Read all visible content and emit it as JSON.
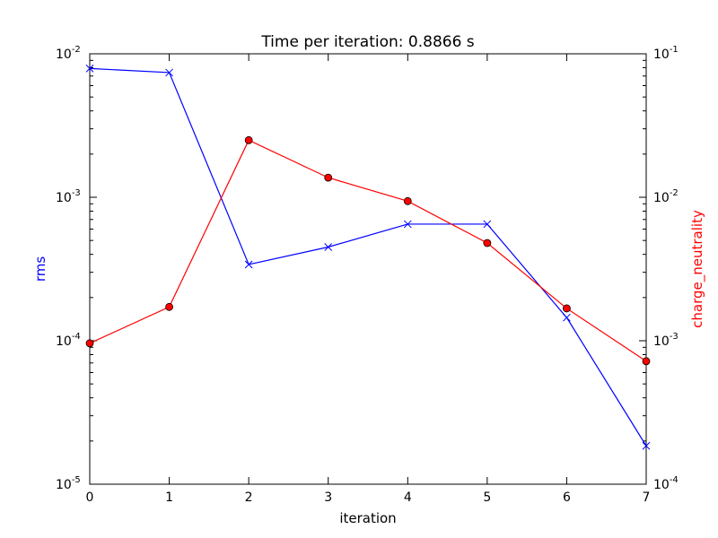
{
  "chart_data": {
    "type": "line",
    "title": "Time per iteration: 0.8866 s",
    "xlabel": "iteration",
    "x": [
      0,
      1,
      2,
      3,
      4,
      5,
      6,
      7
    ],
    "xlim": [
      0,
      7
    ],
    "x_ticks": [
      "0",
      "1",
      "2",
      "3",
      "4",
      "5",
      "6",
      "7"
    ],
    "grid": false,
    "legend": "none",
    "left_axis": {
      "label": "rms",
      "color": "#0000ff",
      "scale": "log",
      "ylim": [
        1e-05,
        0.01
      ],
      "tick_exponents": [
        "-5",
        "-4",
        "-3",
        "-2"
      ]
    },
    "right_axis": {
      "label": "charge_neutrality",
      "color": "#ff0000",
      "scale": "log",
      "ylim": [
        0.0001,
        0.1
      ],
      "tick_exponents": [
        "-4",
        "-3",
        "-2",
        "-1"
      ]
    },
    "tick_base": "10",
    "series": [
      {
        "axis": "left",
        "color": "#0000ff",
        "marker": "x",
        "values": [
          0.0079,
          0.0074,
          0.00034,
          0.00045,
          0.00065,
          0.00065,
          0.000145,
          1.85e-05
        ]
      },
      {
        "axis": "right",
        "color": "#ff0000",
        "marker": "circle",
        "values": [
          0.00096,
          0.00172,
          0.025,
          0.0137,
          0.0094,
          0.0048,
          0.00168,
          0.00072
        ]
      }
    ]
  }
}
